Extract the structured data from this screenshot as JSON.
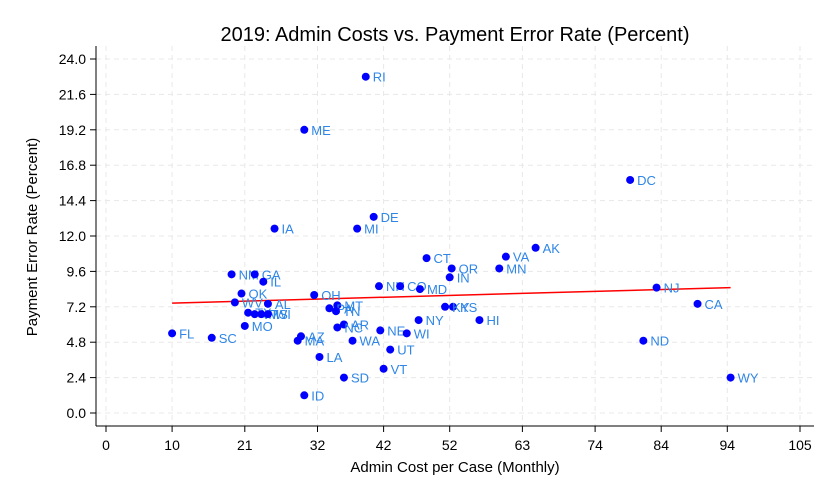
{
  "chart_data": {
    "type": "scatter",
    "title": "2019: Admin Costs vs. Payment Error Rate (Percent)",
    "xlabel": "Admin Cost per Case (Monthly)",
    "ylabel": "Payment Error Rate (Percent)",
    "xlim": [
      0,
      105
    ],
    "ylim": [
      0,
      24
    ],
    "xticks": [
      0,
      10,
      21,
      32,
      42,
      52,
      63,
      74,
      84,
      94,
      105
    ],
    "yticks": [
      0.0,
      2.4,
      4.8,
      7.2,
      9.6,
      12.0,
      14.4,
      16.8,
      19.2,
      21.6,
      24.0
    ],
    "ytick_labels": [
      "0.0",
      "2.4",
      "4.8",
      "7.2",
      "9.6",
      "12.0",
      "14.4",
      "16.8",
      "19.2",
      "21.6",
      "24.0"
    ],
    "grid": true,
    "point_color": "#0000ff",
    "label_color": "#2f86e6",
    "fit_line_color": "#ff0000",
    "fit_line": {
      "x": [
        10,
        94.5
      ],
      "y": [
        7.45,
        8.5
      ]
    },
    "points": [
      {
        "label": "RI",
        "x": 39.3,
        "y": 22.8
      },
      {
        "label": "ME",
        "x": 30.0,
        "y": 19.2
      },
      {
        "label": "DC",
        "x": 79.3,
        "y": 15.8
      },
      {
        "label": "DE",
        "x": 40.5,
        "y": 13.3
      },
      {
        "label": "IA",
        "x": 25.5,
        "y": 12.5
      },
      {
        "label": "MI",
        "x": 38.0,
        "y": 12.5
      },
      {
        "label": "AK",
        "x": 65.0,
        "y": 11.2
      },
      {
        "label": "VA",
        "x": 60.5,
        "y": 10.6
      },
      {
        "label": "CT",
        "x": 48.5,
        "y": 10.5
      },
      {
        "label": "OR",
        "x": 52.3,
        "y": 9.8
      },
      {
        "label": "MN",
        "x": 59.5,
        "y": 9.8
      },
      {
        "label": "NM",
        "x": 19.0,
        "y": 9.4
      },
      {
        "label": "GA",
        "x": 22.5,
        "y": 9.4
      },
      {
        "label": "IN",
        "x": 52.0,
        "y": 9.2
      },
      {
        "label": "IL",
        "x": 23.8,
        "y": 8.9
      },
      {
        "label": "NJ",
        "x": 83.3,
        "y": 8.5
      },
      {
        "label": "NH",
        "x": 41.3,
        "y": 8.6
      },
      {
        "label": "CO",
        "x": 44.5,
        "y": 8.6
      },
      {
        "label": "MD",
        "x": 47.5,
        "y": 8.4
      },
      {
        "label": "OK",
        "x": 20.5,
        "y": 8.1
      },
      {
        "label": "OH",
        "x": 31.5,
        "y": 8.0
      },
      {
        "label": "WV",
        "x": 19.5,
        "y": 7.5
      },
      {
        "label": "AL",
        "x": 24.5,
        "y": 7.4
      },
      {
        "label": "CA",
        "x": 89.5,
        "y": 7.4
      },
      {
        "label": "MT",
        "x": 35.0,
        "y": 7.3
      },
      {
        "label": "PA",
        "x": 33.8,
        "y": 7.1
      },
      {
        "label": "KS",
        "x": 52.5,
        "y": 7.2
      },
      {
        "label": "KY",
        "x": 51.3,
        "y": 7.2
      },
      {
        "label": "TN",
        "x": 34.8,
        "y": 6.9
      },
      {
        "label": "TX",
        "x": 21.5,
        "y": 6.8
      },
      {
        "label": "VT",
        "x": 22.5,
        "y": 6.7
      },
      {
        "label": "MS",
        "x": 23.5,
        "y": 6.7
      },
      {
        "label": "WI",
        "x": 24.5,
        "y": 6.7
      },
      {
        "label": "NY",
        "x": 47.3,
        "y": 6.3
      },
      {
        "label": "HI",
        "x": 56.5,
        "y": 6.3
      },
      {
        "label": "MO",
        "x": 21.0,
        "y": 5.9
      },
      {
        "label": "AR",
        "x": 36.0,
        "y": 6.0
      },
      {
        "label": "NC",
        "x": 35.0,
        "y": 5.8
      },
      {
        "label": "NE",
        "x": 41.5,
        "y": 5.6
      },
      {
        "label": "WI",
        "x": 45.5,
        "y": 5.4
      },
      {
        "label": "FL",
        "x": 10.0,
        "y": 5.4
      },
      {
        "label": "SC",
        "x": 16.0,
        "y": 5.1
      },
      {
        "label": "AZ",
        "x": 29.5,
        "y": 5.2
      },
      {
        "label": "MA",
        "x": 29.0,
        "y": 4.9
      },
      {
        "label": "WA",
        "x": 37.3,
        "y": 4.9
      },
      {
        "label": "ND",
        "x": 81.3,
        "y": 4.9
      },
      {
        "label": "UT",
        "x": 43.0,
        "y": 4.3
      },
      {
        "label": "LA",
        "x": 32.3,
        "y": 3.8
      },
      {
        "label": "VT",
        "x": 42.0,
        "y": 3.0
      },
      {
        "label": "SD",
        "x": 36.0,
        "y": 2.4
      },
      {
        "label": "WY",
        "x": 94.5,
        "y": 2.4
      },
      {
        "label": "ID",
        "x": 30.0,
        "y": 1.2
      }
    ]
  }
}
